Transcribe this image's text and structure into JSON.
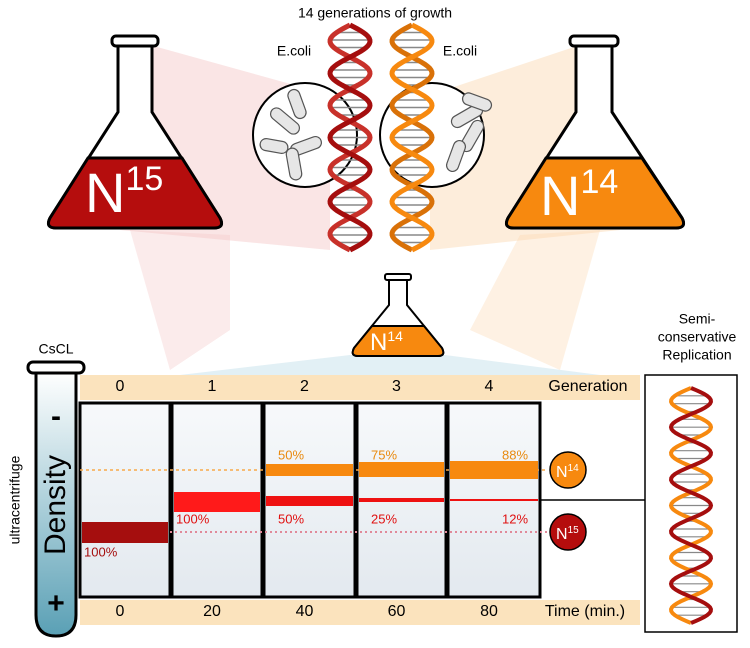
{
  "header": {
    "title": "14 generations of growth"
  },
  "ecoli": [
    "E.coli",
    "E.coli"
  ],
  "flasks": [
    {
      "label": "N",
      "isotope": "15"
    },
    {
      "label": "N",
      "isotope": "14"
    },
    {
      "label": "N",
      "isotope": "14"
    }
  ],
  "tube": {
    "label": "CsCL",
    "side": "ultracentrifuge",
    "axis": "Density",
    "top": "-",
    "bottom": "+"
  },
  "table": {
    "generation_label": "Generation",
    "time_label": "Time (min.)",
    "columns": [
      {
        "generation": 0,
        "time": 0,
        "heavy": "100%"
      },
      {
        "generation": 1,
        "time": 20,
        "hybrid": "100%"
      },
      {
        "generation": 2,
        "time": 40,
        "light": "50%",
        "hybrid": "50%"
      },
      {
        "generation": 3,
        "time": 60,
        "light": "75%",
        "hybrid": "25%"
      },
      {
        "generation": 4,
        "time": 80,
        "light": "88%",
        "hybrid": "12%"
      }
    ]
  },
  "legend": [
    {
      "label": "N",
      "isotope": "14"
    },
    {
      "label": "N",
      "isotope": "15"
    }
  ],
  "result": {
    "lines": [
      "Semi-",
      "conservative",
      "Replication"
    ]
  }
}
